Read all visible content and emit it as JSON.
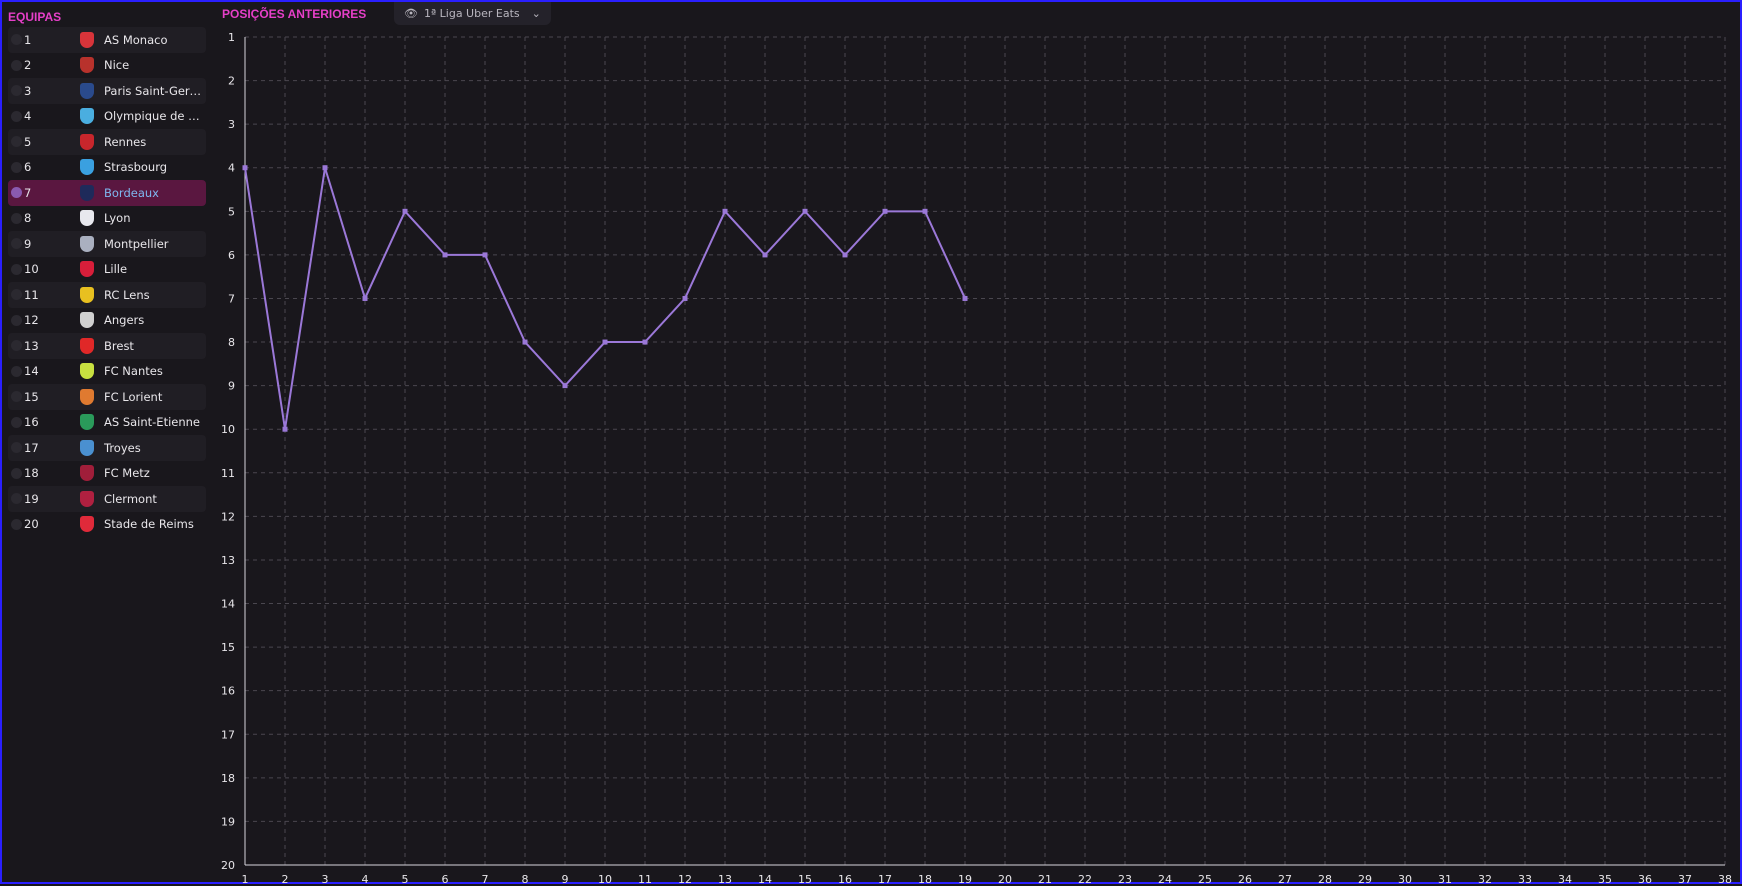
{
  "sidebar": {
    "title": "EQUIPAS",
    "teams": [
      {
        "pos": "1",
        "name": "AS Monaco",
        "color": "#d8343a"
      },
      {
        "pos": "2",
        "name": "Nice",
        "color": "#b8322c"
      },
      {
        "pos": "3",
        "name": "Paris Saint-Germa...",
        "color": "#2a4a8c"
      },
      {
        "pos": "4",
        "name": "Olympique de Mar...",
        "color": "#4aaee0"
      },
      {
        "pos": "5",
        "name": "Rennes",
        "color": "#c8262c"
      },
      {
        "pos": "6",
        "name": "Strasbourg",
        "color": "#3aa0e0"
      },
      {
        "pos": "7",
        "name": "Bordeaux",
        "color": "#1e2a5a"
      },
      {
        "pos": "8",
        "name": "Lyon",
        "color": "#e8e8ee"
      },
      {
        "pos": "9",
        "name": "Montpellier",
        "color": "#aab0c0"
      },
      {
        "pos": "10",
        "name": "Lille",
        "color": "#d81e3a"
      },
      {
        "pos": "11",
        "name": "RC Lens",
        "color": "#e8c020"
      },
      {
        "pos": "12",
        "name": "Angers",
        "color": "#d0d0d0"
      },
      {
        "pos": "13",
        "name": "Brest",
        "color": "#e02828"
      },
      {
        "pos": "14",
        "name": "FC Nantes",
        "color": "#c8e040"
      },
      {
        "pos": "15",
        "name": "FC Lorient",
        "color": "#e07a30"
      },
      {
        "pos": "16",
        "name": "AS Saint-Etienne",
        "color": "#2a9a5a"
      },
      {
        "pos": "17",
        "name": "Troyes",
        "color": "#4a90d0"
      },
      {
        "pos": "18",
        "name": "FC Metz",
        "color": "#a01e3a"
      },
      {
        "pos": "19",
        "name": "Clermont",
        "color": "#b02040"
      },
      {
        "pos": "20",
        "name": "Stade de Reims",
        "color": "#e02a3a"
      }
    ],
    "selected_index": 6
  },
  "chart_header": {
    "title": "POSIÇÕES ANTERIORES",
    "league": "1ª Liga Uber Eats",
    "eye_icon": "eye-icon",
    "chevron_icon": "chevron-down-icon"
  },
  "chart_data": {
    "type": "line",
    "x": [
      1,
      2,
      3,
      4,
      5,
      6,
      7,
      8,
      9,
      10,
      11,
      12,
      13,
      14,
      15,
      16,
      17,
      18,
      19
    ],
    "series": [
      {
        "values": [
          4,
          10,
          4,
          7,
          5,
          6,
          6,
          8,
          9,
          8,
          8,
          7,
          5,
          6,
          5,
          6,
          5,
          5,
          7
        ],
        "color": "#9b78d8"
      }
    ],
    "xlim": [
      1,
      38
    ],
    "ylim": [
      1,
      20
    ],
    "y_inverted": true,
    "grid": true,
    "xlabel": "",
    "ylabel": ""
  }
}
